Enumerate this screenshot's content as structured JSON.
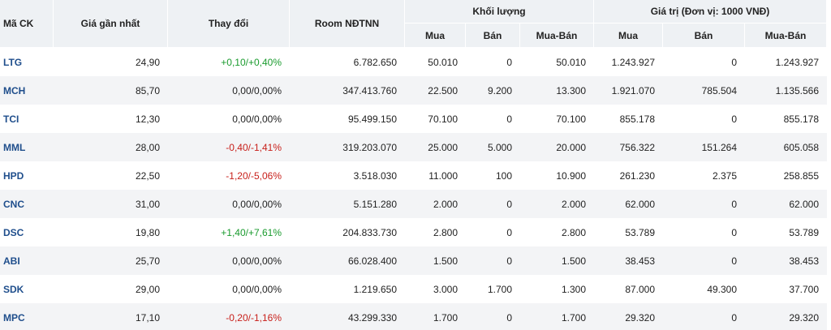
{
  "headers": {
    "code": "Mã CK",
    "last_price": "Giá gần nhất",
    "change": "Thay đổi",
    "room": "Room NĐTNN",
    "volume_group": "Khối lượng",
    "value_group": "Giá trị (Đơn vị: 1000 VNĐ)",
    "buy": "Mua",
    "sell": "Bán",
    "net": "Mua-Bán"
  },
  "rows": [
    {
      "code": "LTG",
      "price": "24,90",
      "change": "+0,10/+0,40%",
      "dir": "up",
      "room": "6.782.650",
      "vol_buy": "50.010",
      "vol_sell": "0",
      "vol_net": "50.010",
      "val_buy": "1.243.927",
      "val_sell": "0",
      "val_net": "1.243.927"
    },
    {
      "code": "MCH",
      "price": "85,70",
      "change": "0,00/0,00%",
      "dir": "flat",
      "room": "347.413.760",
      "vol_buy": "22.500",
      "vol_sell": "9.200",
      "vol_net": "13.300",
      "val_buy": "1.921.070",
      "val_sell": "785.504",
      "val_net": "1.135.566"
    },
    {
      "code": "TCI",
      "price": "12,30",
      "change": "0,00/0,00%",
      "dir": "flat",
      "room": "95.499.150",
      "vol_buy": "70.100",
      "vol_sell": "0",
      "vol_net": "70.100",
      "val_buy": "855.178",
      "val_sell": "0",
      "val_net": "855.178"
    },
    {
      "code": "MML",
      "price": "28,00",
      "change": "-0,40/-1,41%",
      "dir": "down",
      "room": "319.203.070",
      "vol_buy": "25.000",
      "vol_sell": "5.000",
      "vol_net": "20.000",
      "val_buy": "756.322",
      "val_sell": "151.264",
      "val_net": "605.058"
    },
    {
      "code": "HPD",
      "price": "22,50",
      "change": "-1,20/-5,06%",
      "dir": "down",
      "room": "3.518.030",
      "vol_buy": "11.000",
      "vol_sell": "100",
      "vol_net": "10.900",
      "val_buy": "261.230",
      "val_sell": "2.375",
      "val_net": "258.855"
    },
    {
      "code": "CNC",
      "price": "31,00",
      "change": "0,00/0,00%",
      "dir": "flat",
      "room": "5.151.280",
      "vol_buy": "2.000",
      "vol_sell": "0",
      "vol_net": "2.000",
      "val_buy": "62.000",
      "val_sell": "0",
      "val_net": "62.000"
    },
    {
      "code": "DSC",
      "price": "19,80",
      "change": "+1,40/+7,61%",
      "dir": "up",
      "room": "204.833.730",
      "vol_buy": "2.800",
      "vol_sell": "0",
      "vol_net": "2.800",
      "val_buy": "53.789",
      "val_sell": "0",
      "val_net": "53.789"
    },
    {
      "code": "ABI",
      "price": "25,70",
      "change": "0,00/0,00%",
      "dir": "flat",
      "room": "66.028.400",
      "vol_buy": "1.500",
      "vol_sell": "0",
      "vol_net": "1.500",
      "val_buy": "38.453",
      "val_sell": "0",
      "val_net": "38.453"
    },
    {
      "code": "SDK",
      "price": "29,00",
      "change": "0,00/0,00%",
      "dir": "flat",
      "room": "1.219.650",
      "vol_buy": "3.000",
      "vol_sell": "1.700",
      "vol_net": "1.300",
      "val_buy": "87.000",
      "val_sell": "49.300",
      "val_net": "37.700"
    },
    {
      "code": "MPC",
      "price": "17,10",
      "change": "-0,20/-1,16%",
      "dir": "down",
      "room": "43.299.330",
      "vol_buy": "1.700",
      "vol_sell": "0",
      "vol_net": "1.700",
      "val_buy": "29.320",
      "val_sell": "0",
      "val_net": "29.320"
    }
  ],
  "colors": {
    "up": "#1a9b2e",
    "down": "#c8201b",
    "code": "#1f4e8c",
    "header_bg": "#eef1f4"
  }
}
